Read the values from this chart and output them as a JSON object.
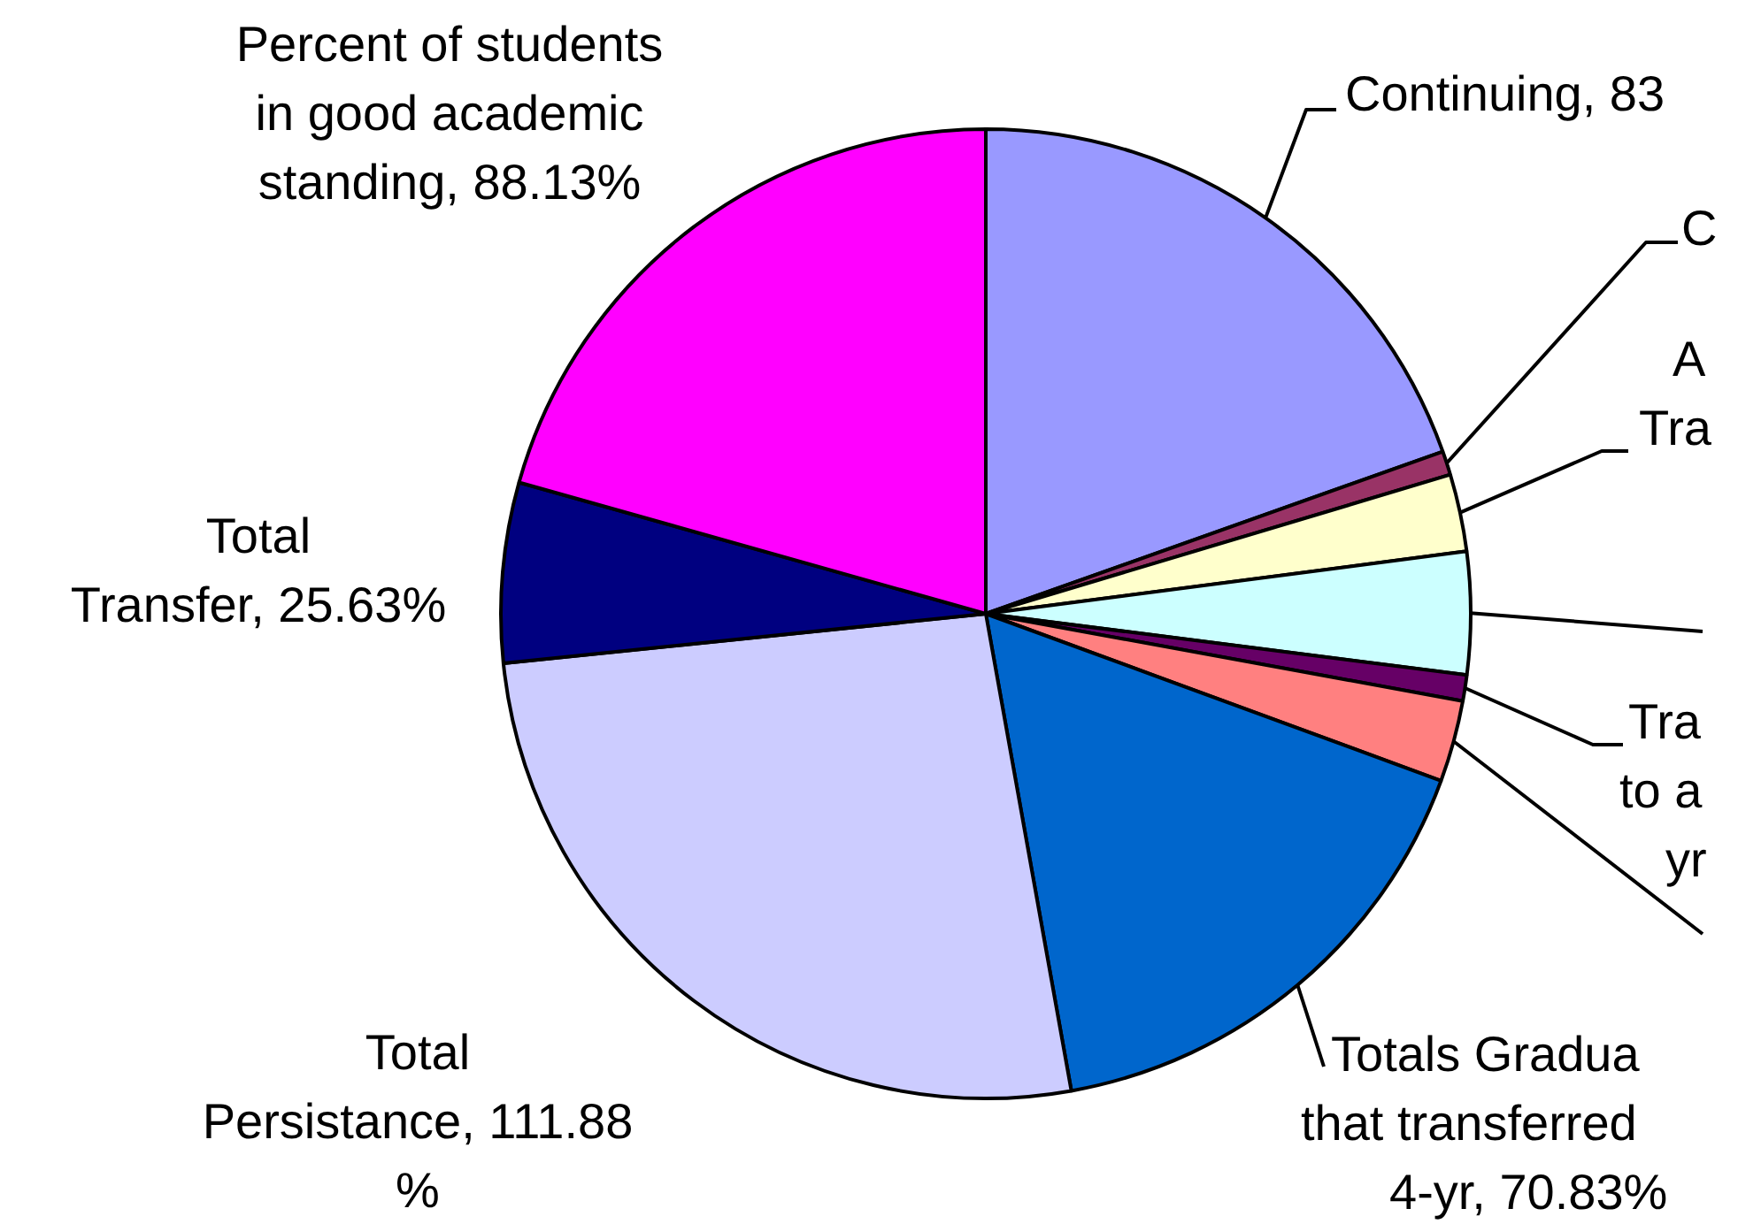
{
  "chart_data": {
    "type": "pie",
    "categories": [
      "Continuing, 83",
      "C",
      "A\nTra",
      null,
      "Tra\nto a\nyr",
      null,
      "Totals Gradua\nthat transferred\n4-yr, 70.83%",
      "Total\nPersistance, 111.88\n%",
      "Total\nTransfer, 25.63%",
      "Percent of students\nin good academic\nstanding, 88.13%"
    ],
    "values": [
      83.6,
      3.4,
      11.0,
      17.4,
      3.7,
      11.6,
      70.83,
      111.88,
      25.63,
      88.13
    ],
    "colors": [
      "#9999ff",
      "#993366",
      "#ffffcc",
      "#ccffff",
      "#660066",
      "#ff8080",
      "#0066cc",
      "#ccccff",
      "#000080",
      "#ff00ff"
    ],
    "legend": false
  }
}
